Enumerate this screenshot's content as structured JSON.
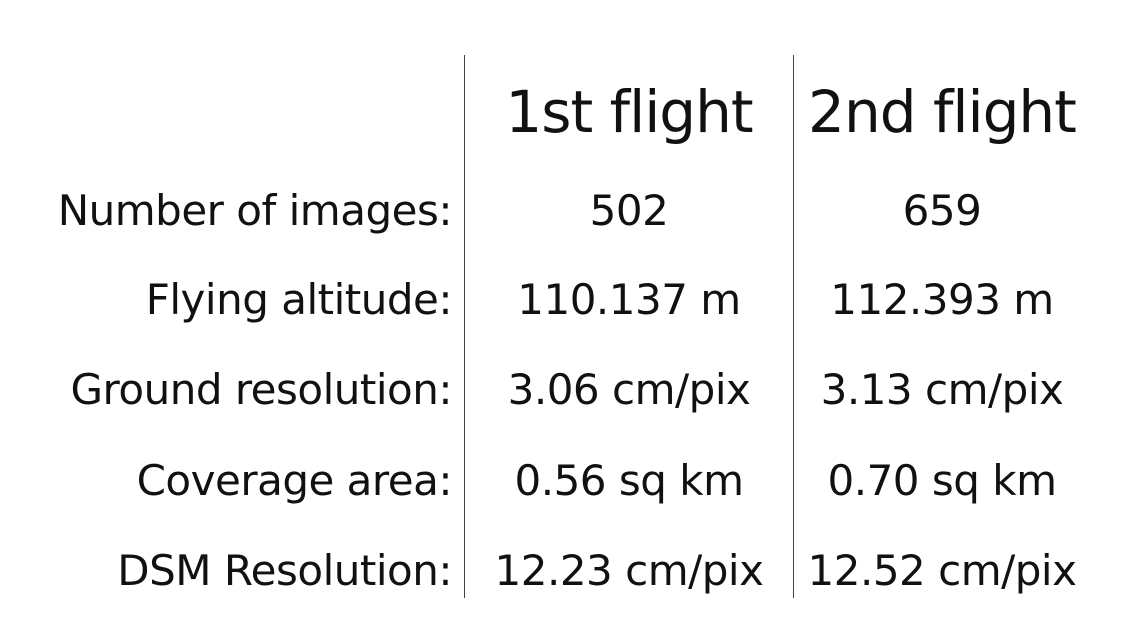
{
  "table": {
    "headers": [
      "1st flight",
      "2nd flight"
    ],
    "rows": [
      {
        "label": "Number of images:",
        "values": [
          "502",
          "659"
        ]
      },
      {
        "label": "Flying altitude:",
        "values": [
          "110.137 m",
          "112.393 m"
        ]
      },
      {
        "label": "Ground resolution:",
        "values": [
          "3.06 cm/pix",
          "3.13 cm/pix"
        ]
      },
      {
        "label": "Coverage area:",
        "values": [
          "0.56 sq km",
          "0.70 sq km"
        ]
      },
      {
        "label": "DSM Resolution:",
        "values": [
          "12.23 cm/pix",
          "12.52 cm/pix"
        ]
      }
    ]
  }
}
